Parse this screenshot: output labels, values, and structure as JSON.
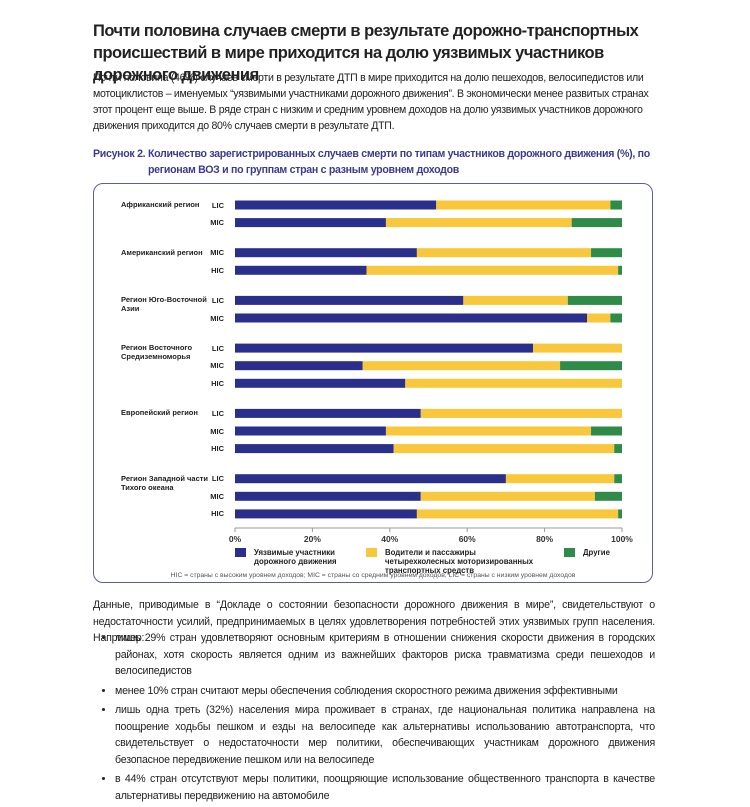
{
  "header": {
    "title": "Почти половина случаев смерти в результате дорожно-транспортных происшествий в мире приходится на долю уязвимых участников дорожного движения",
    "intro": "Почти половина (46%) случаев смерти в результате ДТП в мире приходится на долю пешеходов, велосипедистов или мотоциклистов – именуемых “уязвимыми участниками дорожного движения”. В экономически менее развитых странах этот процент еще выше. В ряде стран с низким и средним уровнем доходов на долю уязвимых участников дорожного движения приходится до 80% случаев смерти в результате ДТП."
  },
  "figure": {
    "caption": "Рисунок 2. Количество зарегистрированных случаев смерти по типам участников дорожного движения (%), по регионам ВОЗ и по группам стран с разным уровнем доходов",
    "chart_data": {
      "type": "stacked-bar-horizontal",
      "groups": [
        {
          "label": "Африканский регион",
          "categories": [
            "LIC",
            "MIC"
          ]
        },
        {
          "label": "Американский регион",
          "categories": [
            "MIC",
            "HIC"
          ]
        },
        {
          "label": "Регион Юго-Восточной Азии",
          "categories": [
            "LIC",
            "MIC"
          ]
        },
        {
          "label": "Регион Восточного Средиземноморья",
          "categories": [
            "LIC",
            "MIC",
            "HIC"
          ]
        },
        {
          "label": "Европейский регион",
          "categories": [
            "LIC",
            "MIC",
            "HIC"
          ]
        },
        {
          "label": "Регион Западной части Тихого океана",
          "categories": [
            "LIC",
            "MIC",
            "HIC"
          ]
        }
      ],
      "series": [
        {
          "name": "Уязвимые участники дорожного движения",
          "color": "#2b2f8c",
          "values": [
            52,
            39,
            47,
            34,
            59,
            91,
            77,
            33,
            44,
            48,
            39,
            41,
            70,
            48,
            47
          ]
        },
        {
          "name": "Водители и пассажиры четырехколесных моторизированных транспортных средств",
          "color": "#f9c73b",
          "values": [
            45,
            48,
            45,
            65,
            27,
            6,
            23,
            51,
            56,
            52,
            53,
            57,
            28,
            45,
            52
          ]
        },
        {
          "name": "Другие",
          "color": "#2e8b48",
          "values": [
            3,
            13,
            8,
            1,
            14,
            3,
            0,
            16,
            0,
            0,
            8,
            2,
            2,
            7,
            1
          ]
        }
      ],
      "xlim": [
        0,
        100
      ],
      "xticks": [
        {
          "value": 0,
          "label": "0%"
        },
        {
          "value": 20,
          "label": "20%"
        },
        {
          "value": 40,
          "label": "40%"
        },
        {
          "value": 60,
          "label": "60%"
        },
        {
          "value": 80,
          "label": "80%"
        },
        {
          "value": 100,
          "label": "100%"
        }
      ],
      "grid": false
    },
    "note": "HIC = страны с высоким уровнем доходов; MIC = страны со средним уровнем доходов; LIC = страны с низким уровнем доходов"
  },
  "body": {
    "paragraph": "Данные, приводимые в “Докладе о состоянии безопасности дорожного движения в мире”, свидетельствуют о недостаточности усилий, предпринимаемых в целях удовлетворения потребностей этих уязвимых групп населения. Например:",
    "bullets": [
      "лишь 29% стран удовлетворяют основным критериям в отношении снижения скорости движения в городских районах, хотя скорость является одним из важнейших факторов риска травматизма среди пешеходов и велосипедистов",
      "менее 10% стран считают меры обеспечения соблюдения скоростного режима движения эффективными",
      "лишь одна треть (32%) населения мира проживает в странах, где национальная политика направлена на поощрение ходьбы пешком и езды на велосипеде как альтернативы использованию автотранспорта, что свидетельствует о недостаточности мер политики, обеспечивающих участникам дорожного движения безопасное передвижение пешком или на велосипеде",
      "в 44% стран отсутствуют меры политики, поощряющие использование общественного транспорта в качестве альтернативы передвижению на автомобиле"
    ]
  }
}
